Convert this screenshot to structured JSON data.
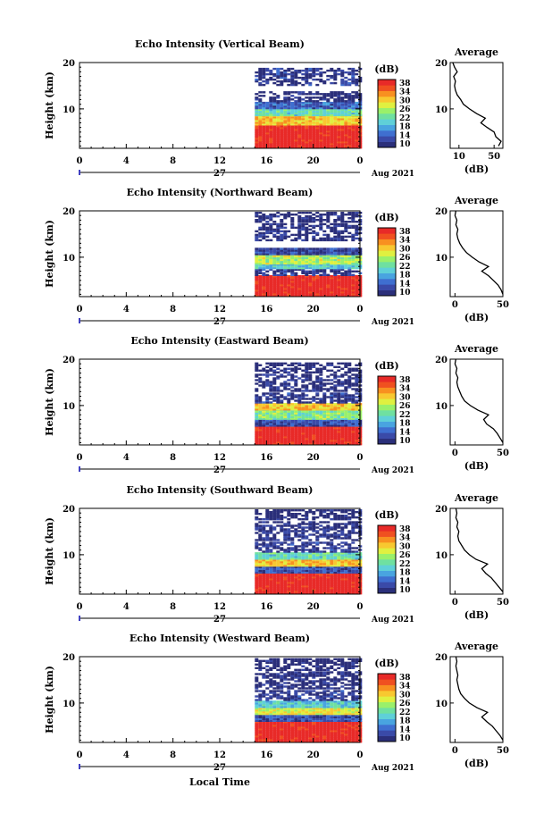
{
  "x_axis_title": "Local Time",
  "colorbar": {
    "unit": "(dB)",
    "ticks": [
      "38",
      "34",
      "30",
      "26",
      "22",
      "18",
      "14",
      "10"
    ],
    "colors": [
      "#2b2f7a",
      "#3a4aa8",
      "#3f6fd0",
      "#49a4e0",
      "#5fd0d8",
      "#6fe0a0",
      "#9af06a",
      "#e0f040",
      "#f8c830",
      "#f89020",
      "#f05020",
      "#e82a28"
    ]
  },
  "average_title": "Average",
  "average_xlabel": "(dB)",
  "date_label": "Aug 2021",
  "chart_data": [
    {
      "type": "heatmap",
      "title": "Echo Intensity (Vertical Beam)",
      "ylabel": "Height (km)",
      "x_ticks": [
        "0",
        "4",
        "8",
        "12",
        "16",
        "20",
        "0"
      ],
      "xlim": [
        0,
        24
      ],
      "y_ticks": [
        "10",
        "20"
      ],
      "ylim": [
        1.5,
        20
      ],
      "day_label": "27",
      "data_start_hour": 15,
      "zlim": [
        10,
        38
      ],
      "layers": [
        {
          "from": 1.5,
          "to": 6.5,
          "value": 38
        },
        {
          "from": 6.5,
          "to": 8.5,
          "value": 30
        },
        {
          "from": 8.5,
          "to": 10,
          "value": 22
        },
        {
          "from": 10,
          "to": 11.5,
          "value": 15
        },
        {
          "from": 11.5,
          "to": 13.5,
          "value": 10
        },
        {
          "from": 15,
          "to": 18.5,
          "value": 12
        }
      ],
      "average": {
        "x_ticks": [
          "10",
          "50"
        ],
        "xlim": [
          0,
          60
        ],
        "profile": [
          [
            55,
            2
          ],
          [
            58,
            3
          ],
          [
            52,
            4
          ],
          [
            50,
            5
          ],
          [
            42,
            6
          ],
          [
            35,
            7
          ],
          [
            40,
            8
          ],
          [
            30,
            9
          ],
          [
            22,
            10
          ],
          [
            15,
            11
          ],
          [
            12,
            12
          ],
          [
            8,
            13
          ],
          [
            6,
            14
          ],
          [
            5,
            15
          ],
          [
            6,
            16
          ],
          [
            4,
            17
          ],
          [
            8,
            18
          ],
          [
            5,
            19
          ],
          [
            3,
            20
          ]
        ]
      }
    },
    {
      "type": "heatmap",
      "title": "Echo Intensity (Northward Beam)",
      "ylabel": "Height (km)",
      "x_ticks": [
        "0",
        "4",
        "8",
        "12",
        "16",
        "20",
        "0"
      ],
      "xlim": [
        0,
        24
      ],
      "y_ticks": [
        "10",
        "20"
      ],
      "ylim": [
        1.5,
        20
      ],
      "day_label": "27",
      "data_start_hour": 15,
      "zlim": [
        10,
        38
      ],
      "layers": [
        {
          "from": 1.5,
          "to": 6.0,
          "value": 38
        },
        {
          "from": 6.0,
          "to": 7.5,
          "value": 12
        },
        {
          "from": 7.5,
          "to": 8.5,
          "value": 20
        },
        {
          "from": 8.5,
          "to": 10.5,
          "value": 26
        },
        {
          "from": 10.5,
          "to": 12.0,
          "value": 13
        },
        {
          "from": 13.5,
          "to": 17.0,
          "value": 11
        },
        {
          "from": 17.5,
          "to": 19.5,
          "value": 10
        }
      ],
      "average": {
        "x_ticks": [
          "0",
          "50"
        ],
        "xlim": [
          -5,
          50
        ],
        "profile": [
          [
            50,
            2
          ],
          [
            48,
            3
          ],
          [
            45,
            4
          ],
          [
            40,
            5
          ],
          [
            35,
            6
          ],
          [
            28,
            7
          ],
          [
            35,
            8
          ],
          [
            25,
            9
          ],
          [
            18,
            10
          ],
          [
            12,
            11
          ],
          [
            8,
            12
          ],
          [
            5,
            13
          ],
          [
            3,
            14
          ],
          [
            2,
            15
          ],
          [
            3,
            16
          ],
          [
            1,
            17
          ],
          [
            2,
            18
          ],
          [
            0,
            19
          ],
          [
            1,
            20
          ]
        ]
      }
    },
    {
      "type": "heatmap",
      "title": "Echo Intensity (Eastward Beam)",
      "ylabel": "Height (km)",
      "x_ticks": [
        "0",
        "4",
        "8",
        "12",
        "16",
        "20",
        "0"
      ],
      "xlim": [
        0,
        24
      ],
      "y_ticks": [
        "10",
        "20"
      ],
      "ylim": [
        1.5,
        20
      ],
      "day_label": "27",
      "data_start_hour": 15,
      "zlim": [
        10,
        38
      ],
      "layers": [
        {
          "from": 1.5,
          "to": 5.5,
          "value": 38
        },
        {
          "from": 5.5,
          "to": 7.0,
          "value": 14
        },
        {
          "from": 7.0,
          "to": 9.0,
          "value": 24
        },
        {
          "from": 9.0,
          "to": 10.5,
          "value": 30
        },
        {
          "from": 10.5,
          "to": 12.5,
          "value": 12
        },
        {
          "from": 13.0,
          "to": 16.5,
          "value": 11
        },
        {
          "from": 17.0,
          "to": 19.0,
          "value": 10
        }
      ],
      "average": {
        "x_ticks": [
          "0",
          "50"
        ],
        "xlim": [
          -5,
          50
        ],
        "profile": [
          [
            50,
            2
          ],
          [
            47,
            3
          ],
          [
            44,
            4
          ],
          [
            40,
            5
          ],
          [
            33,
            6
          ],
          [
            30,
            7
          ],
          [
            35,
            8
          ],
          [
            24,
            9
          ],
          [
            16,
            10
          ],
          [
            10,
            11
          ],
          [
            7,
            12
          ],
          [
            5,
            13
          ],
          [
            3,
            14
          ],
          [
            2,
            15
          ],
          [
            3,
            16
          ],
          [
            1,
            17
          ],
          [
            2,
            18
          ],
          [
            0,
            19
          ],
          [
            1,
            20
          ]
        ]
      }
    },
    {
      "type": "heatmap",
      "title": "Echo Intensity (Southward Beam)",
      "ylabel": "Height (km)",
      "x_ticks": [
        "0",
        "4",
        "8",
        "12",
        "16",
        "20",
        "0"
      ],
      "xlim": [
        0,
        24
      ],
      "y_ticks": [
        "10",
        "20"
      ],
      "ylim": [
        1.5,
        20
      ],
      "day_label": "27",
      "data_start_hour": 15,
      "zlim": [
        10,
        38
      ],
      "layers": [
        {
          "from": 1.5,
          "to": 6.0,
          "value": 38
        },
        {
          "from": 6.0,
          "to": 7.5,
          "value": 14
        },
        {
          "from": 7.5,
          "to": 9.0,
          "value": 30
        },
        {
          "from": 9.0,
          "to": 10.5,
          "value": 22
        },
        {
          "from": 10.5,
          "to": 12.5,
          "value": 12
        },
        {
          "from": 13.0,
          "to": 17.0,
          "value": 11
        },
        {
          "from": 17.5,
          "to": 19.5,
          "value": 10
        }
      ],
      "average": {
        "x_ticks": [
          "0",
          "50"
        ],
        "xlim": [
          -5,
          50
        ],
        "profile": [
          [
            50,
            2
          ],
          [
            46,
            3
          ],
          [
            42,
            4
          ],
          [
            38,
            5
          ],
          [
            32,
            6
          ],
          [
            28,
            7
          ],
          [
            34,
            8
          ],
          [
            22,
            9
          ],
          [
            15,
            10
          ],
          [
            10,
            11
          ],
          [
            7,
            12
          ],
          [
            4,
            13
          ],
          [
            3,
            14
          ],
          [
            4,
            15
          ],
          [
            2,
            16
          ],
          [
            3,
            17
          ],
          [
            1,
            18
          ],
          [
            2,
            19
          ],
          [
            1,
            20
          ]
        ]
      }
    },
    {
      "type": "heatmap",
      "title": "Echo Intensity (Westward Beam)",
      "ylabel": "Height (km)",
      "x_ticks": [
        "0",
        "4",
        "8",
        "12",
        "16",
        "20",
        "0"
      ],
      "xlim": [
        0,
        24
      ],
      "y_ticks": [
        "10",
        "20"
      ],
      "ylim": [
        1.5,
        20
      ],
      "day_label": "27",
      "data_start_hour": 15,
      "zlim": [
        10,
        38
      ],
      "layers": [
        {
          "from": 1.5,
          "to": 6.0,
          "value": 38
        },
        {
          "from": 6.0,
          "to": 7.5,
          "value": 14
        },
        {
          "from": 7.5,
          "to": 9.0,
          "value": 28
        },
        {
          "from": 9.0,
          "to": 10.5,
          "value": 20
        },
        {
          "from": 10.5,
          "to": 12.5,
          "value": 12
        },
        {
          "from": 13.0,
          "to": 16.5,
          "value": 11
        },
        {
          "from": 17.0,
          "to": 19.5,
          "value": 10
        }
      ],
      "average": {
        "x_ticks": [
          "0",
          "50"
        ],
        "xlim": [
          -5,
          50
        ],
        "profile": [
          [
            50,
            2
          ],
          [
            47,
            3
          ],
          [
            43,
            4
          ],
          [
            39,
            5
          ],
          [
            33,
            6
          ],
          [
            28,
            7
          ],
          [
            34,
            8
          ],
          [
            23,
            9
          ],
          [
            15,
            10
          ],
          [
            10,
            11
          ],
          [
            6,
            12
          ],
          [
            4,
            13
          ],
          [
            3,
            14
          ],
          [
            2,
            15
          ],
          [
            3,
            16
          ],
          [
            2,
            17
          ],
          [
            1,
            18
          ],
          [
            2,
            19
          ],
          [
            1,
            20
          ]
        ]
      }
    }
  ]
}
